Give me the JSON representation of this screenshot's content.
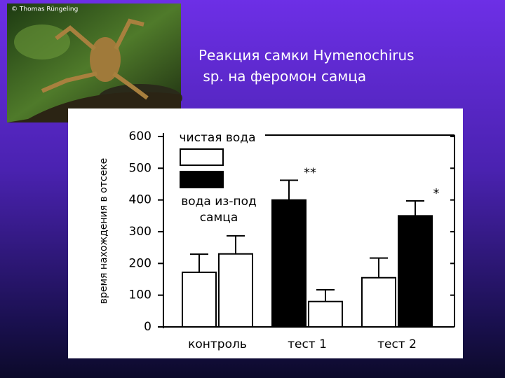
{
  "photo_credit": "© Thomas Rüngeling",
  "chart_data": {
    "type": "bar",
    "title": "Реакция самки Hymenochirus sp. на феромон самца",
    "ylabel": "время нахождения в отсеке",
    "series": [
      {
        "name": "чистая вода",
        "color": "#ffffff"
      },
      {
        "name": "вода из-под самца",
        "color": "#000000"
      }
    ],
    "groups": [
      {
        "label": "контроль",
        "bars": [
          {
            "series": 0,
            "value": 172,
            "error": 57
          },
          {
            "series": 0,
            "value": 230,
            "error": 57
          }
        ]
      },
      {
        "label": "тест 1",
        "bars": [
          {
            "series": 1,
            "value": 400,
            "error": 62,
            "annotation": "**"
          },
          {
            "series": 0,
            "value": 80,
            "error": 37
          }
        ]
      },
      {
        "label": "тест 2",
        "bars": [
          {
            "series": 0,
            "value": 155,
            "error": 62
          },
          {
            "series": 1,
            "value": 350,
            "error": 47,
            "annotation": "*"
          }
        ]
      }
    ],
    "ylim": [
      0,
      600
    ],
    "yticks": [
      0,
      100,
      200,
      300,
      400,
      500,
      600
    ]
  }
}
